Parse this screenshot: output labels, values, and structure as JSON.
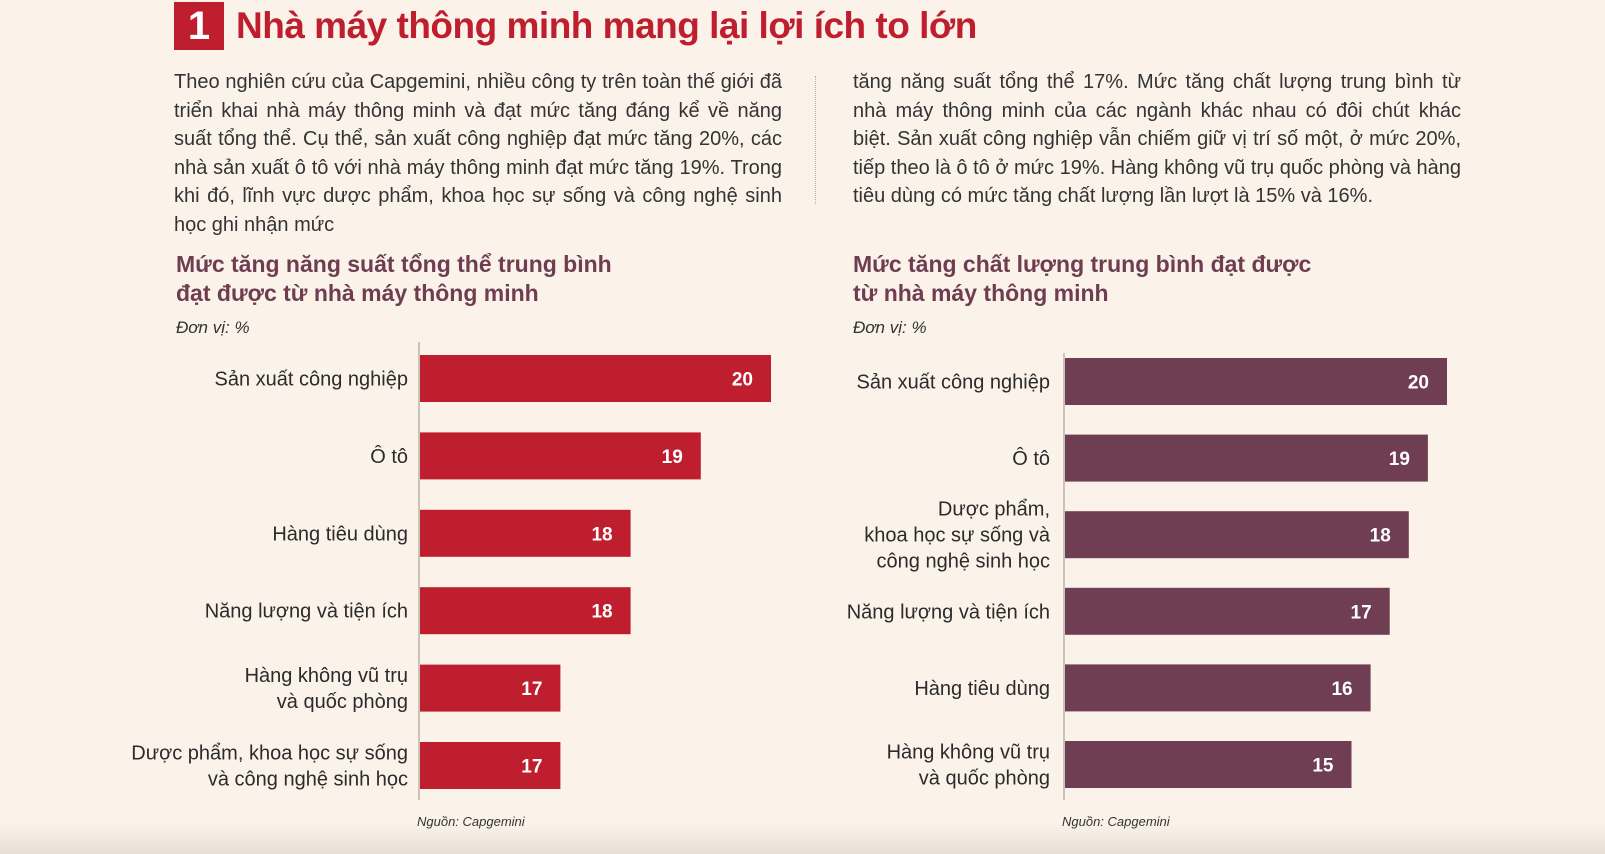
{
  "header": {
    "number": "1",
    "title": "Nhà máy thông minh mang lại lợi ích to lớn"
  },
  "body": {
    "left_text": "Theo nghiên cứu của Capgemini, nhiều công ty trên toàn thế giới đã triển khai nhà máy thông minh và đạt mức tăng đáng kể về năng suất tổng thể. Cụ thể, sản xuất công nghiệp đạt mức tăng 20%, các nhà sản xuất ô tô với nhà máy thông minh đạt mức tăng 19%. Trong khi đó, lĩnh vực dược phẩm, khoa học sự sống và công nghệ sinh học ghi nhận mức",
    "right_text": "tăng năng suất tổng thể 17%.  Mức tăng chất lượng trung bình từ nhà máy thông minh của các ngành khác nhau có đôi chút khác biệt. Sản xuất công nghiệp vẫn chiếm giữ vị trí số một, ở mức 20%, tiếp theo là ô tô ở mức 19%. Hàng không vũ trụ quốc phòng và hàng tiêu dùng có mức tăng chất lượng lần lượt là 15% và 16%."
  },
  "colors": {
    "accent_red": "#bf1e2e",
    "accent_plum": "#703e52",
    "background": "#fbf3ea"
  },
  "chart_data": [
    {
      "type": "bar",
      "orientation": "horizontal",
      "title_lines": [
        "Mức tăng năng suất tổng thể trung bình",
        "đạt được từ nhà máy thông minh"
      ],
      "unit": "Đơn vị: %",
      "source": "Nguồn: Capgemini",
      "color": "#bf1e2e",
      "xlim": [
        15,
        20
      ],
      "categories": [
        [
          "Sản xuất công nghiệp"
        ],
        [
          "Ô tô"
        ],
        [
          "Hàng tiêu dùng"
        ],
        [
          "Năng lượng và tiện ích"
        ],
        [
          "Hàng không vũ trụ",
          "và quốc phòng"
        ],
        [
          "Dược phẩm, khoa học sự sống",
          "và công nghệ sinh học"
        ]
      ],
      "values": [
        20,
        19,
        18,
        18,
        17,
        17
      ]
    },
    {
      "type": "bar",
      "orientation": "horizontal",
      "title_lines": [
        "Mức tăng chất lượng trung bình đạt được",
        "từ nhà máy thông minh"
      ],
      "unit": "Đơn vị: %",
      "source": "Nguồn: Capgemini",
      "color": "#703e52",
      "xlim": [
        0,
        20
      ],
      "categories": [
        [
          "Sản xuất công nghiệp"
        ],
        [
          "Ô tô"
        ],
        [
          "Dược phẩm,",
          "khoa học sự sống và",
          "công nghệ sinh học"
        ],
        [
          "Năng lượng và tiện ích"
        ],
        [
          "Hàng tiêu dùng"
        ],
        [
          "Hàng không vũ trụ",
          "và quốc phòng"
        ]
      ],
      "values": [
        20,
        19,
        18,
        17,
        16,
        15
      ]
    }
  ]
}
